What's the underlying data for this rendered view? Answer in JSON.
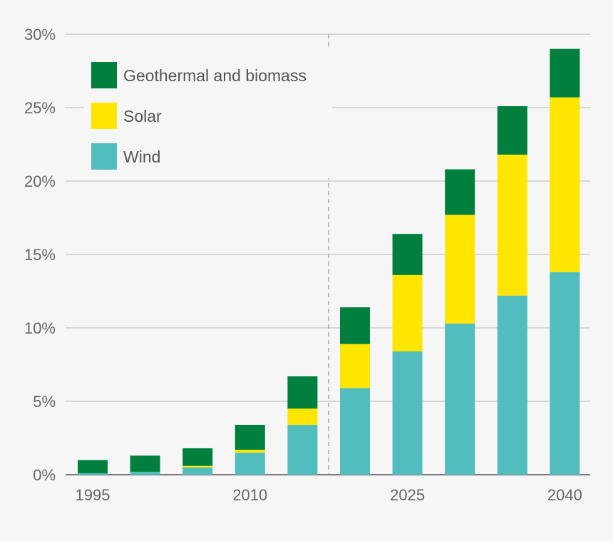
{
  "chart_data": {
    "type": "bar",
    "stacked": true,
    "categories": [
      "1995",
      "2000",
      "2005",
      "2010",
      "2015",
      "2020",
      "2025",
      "2030",
      "2035",
      "2040"
    ],
    "x_tick_labels": [
      "1995",
      "2010",
      "2025",
      "2040"
    ],
    "y_tick_labels": [
      "0%",
      "5%",
      "10%",
      "15%",
      "20%",
      "25%",
      "30%"
    ],
    "y_ticks": [
      0,
      5,
      10,
      15,
      20,
      25,
      30
    ],
    "ylim": [
      0,
      30
    ],
    "grid": true,
    "legend_position": "top-left",
    "divider_after_category": "2015",
    "series": [
      {
        "name": "Wind",
        "color": "#52bdbf",
        "values": [
          0.1,
          0.2,
          0.5,
          1.5,
          3.4,
          5.9,
          8.4,
          10.3,
          12.2,
          13.8
        ]
      },
      {
        "name": "Solar",
        "color": "#ffe600",
        "values": [
          0.0,
          0.0,
          0.1,
          0.2,
          1.1,
          3.0,
          5.2,
          7.4,
          9.6,
          11.9
        ]
      },
      {
        "name": "Geothermal and biomass",
        "color": "#007f3d",
        "values": [
          0.9,
          1.1,
          1.2,
          1.7,
          2.2,
          2.5,
          2.8,
          3.1,
          3.3,
          3.3
        ]
      }
    ],
    "legend_order": [
      "Geothermal and biomass",
      "Solar",
      "Wind"
    ]
  }
}
